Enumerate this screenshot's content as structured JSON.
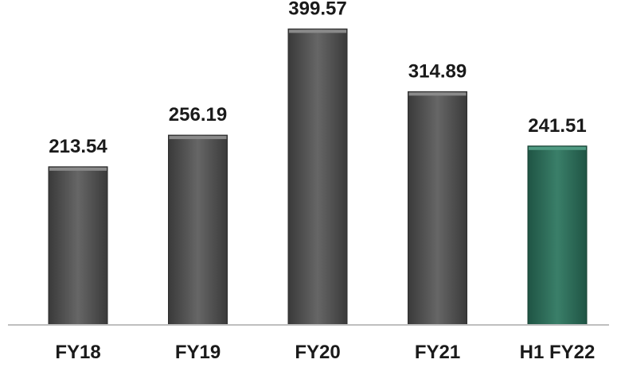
{
  "chart_data": {
    "type": "bar",
    "title": "",
    "xlabel": "",
    "ylabel": "",
    "categories": [
      "FY18",
      "FY19",
      "FY20",
      "FY21",
      "H1 FY22"
    ],
    "values": [
      213.54,
      256.19,
      399.57,
      314.89,
      241.51
    ],
    "value_labels": [
      "213.54",
      "256.19",
      "399.57",
      "314.89",
      "241.51"
    ],
    "ylim": [
      0,
      400
    ],
    "grid": false,
    "legend": "none",
    "colors": {
      "default_bar": "#555555",
      "highlight_bar": "#2f6e5b",
      "baseline": "#bfbfbf"
    },
    "highlight_index": 4
  }
}
